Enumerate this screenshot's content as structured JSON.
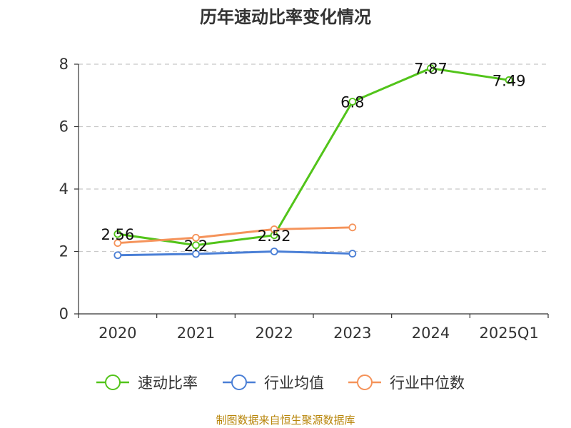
{
  "chart_data": {
    "type": "line",
    "title": "历年速动比率变化情况",
    "categories": [
      "2020",
      "2021",
      "2022",
      "2023",
      "2024",
      "2025Q1"
    ],
    "ylim": [
      0,
      8
    ],
    "yticks": [
      "0",
      "2",
      "4",
      "6",
      "8"
    ],
    "grid": true,
    "legend_position": "bottom",
    "series": [
      {
        "name": "速动比率",
        "color": "#52c41a",
        "values": [
          2.56,
          2.2,
          2.52,
          6.8,
          7.87,
          7.49
        ],
        "labels": [
          "2.56",
          "2.2",
          "2.52",
          "6.8",
          "7.87",
          "7.49"
        ]
      },
      {
        "name": "行业均值",
        "color": "#4a7fd6",
        "values": [
          1.88,
          1.92,
          2.0,
          1.93,
          null,
          null
        ]
      },
      {
        "name": "行业中位数",
        "color": "#f5935a",
        "values": [
          2.27,
          2.44,
          2.71,
          2.77,
          null,
          null
        ]
      }
    ],
    "source": "制图数据来自恒生聚源数据库"
  }
}
